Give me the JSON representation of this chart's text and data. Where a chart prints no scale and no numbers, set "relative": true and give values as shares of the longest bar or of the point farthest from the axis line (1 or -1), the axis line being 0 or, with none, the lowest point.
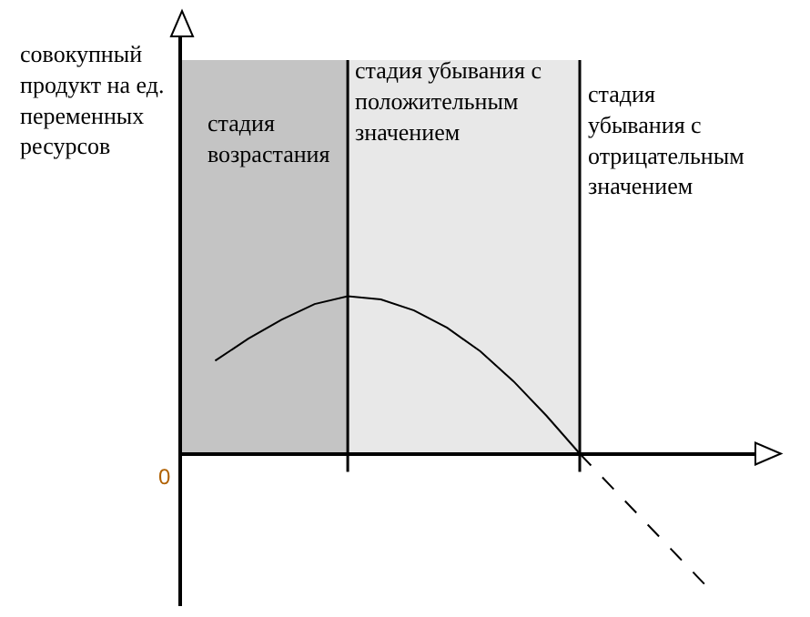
{
  "chart_data": {
    "type": "line",
    "relative": true,
    "categories": [
      null,
      null,
      null,
      null,
      null,
      null,
      null,
      null,
      null,
      null,
      null,
      null,
      null,
      null,
      null,
      null
    ],
    "series": [
      {
        "color": "#000000",
        "line_style": "solid",
        "values": [
          0.59,
          0.73,
          0.85,
          0.95,
          1.0,
          0.98,
          0.91,
          0.8,
          0.65,
          0.46,
          0.24,
          0,
          null,
          null,
          null,
          null
        ]
      },
      {
        "color": "#000000",
        "line_style": "dashed",
        "values": [
          null,
          null,
          null,
          null,
          null,
          null,
          null,
          null,
          null,
          null,
          null,
          0,
          -0.22,
          -0.44,
          -0.66,
          -0.88
        ]
      }
    ],
    "annotations": [
      "совокупный продукт на ед. переменных ресурсов",
      "стадия возрастания",
      "стадия убывания с положительным значением",
      "стадия убывания с отрицательным значением",
      "0"
    ],
    "grid": false,
    "legend": false
  }
}
